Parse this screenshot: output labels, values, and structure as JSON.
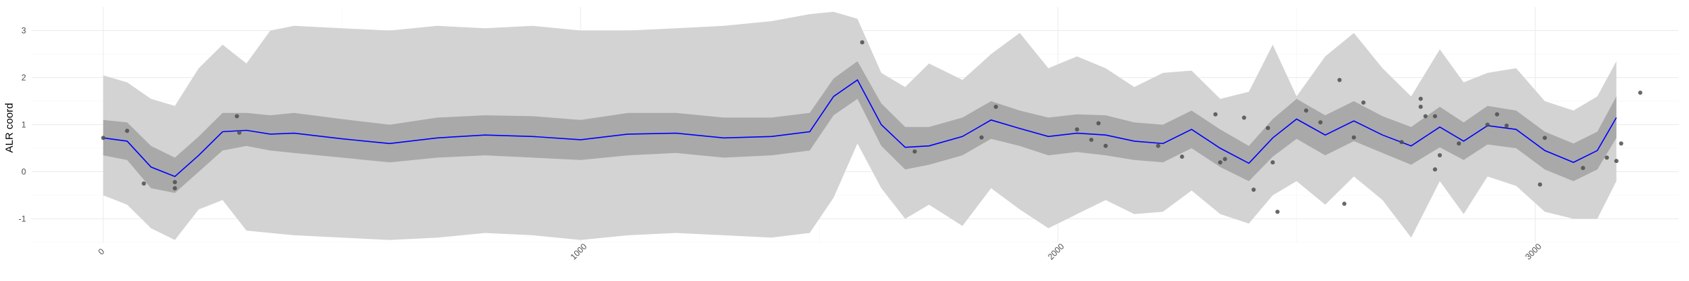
{
  "chart_data": {
    "type": "line",
    "title": "",
    "xlabel": "",
    "ylabel": "ALR coord",
    "xlim": [
      -150,
      3300
    ],
    "ylim": [
      -1.5,
      3.5
    ],
    "x_ticks": [
      0,
      1000,
      2000,
      3000
    ],
    "y_ticks": [
      -1,
      0,
      1,
      2,
      3
    ],
    "grid": true,
    "colors": {
      "mean_line": "#0000ff",
      "inner_band": "#a9a9a9",
      "outer_band": "#d3d3d3",
      "points": "#4d4d4d",
      "grid_major": "#ebebeb",
      "grid_minor": "#f5f5f5"
    },
    "series": [
      {
        "x": [
          0,
          50,
          100,
          150,
          200,
          250,
          300,
          350,
          400,
          500,
          600,
          700,
          800,
          900,
          1000,
          1100,
          1200,
          1300,
          1400,
          1480,
          1530,
          1580,
          1630,
          1680,
          1730,
          1800,
          1860,
          1920,
          1980,
          2040,
          2100,
          2160,
          2220,
          2280,
          2340,
          2400,
          2450,
          2500,
          2560,
          2620,
          2680,
          2740,
          2800,
          2850,
          2900,
          2960,
          3020,
          3080,
          3130,
          3170
        ],
        "mean": [
          0.72,
          0.65,
          0.1,
          -0.1,
          0.35,
          0.85,
          0.88,
          0.8,
          0.82,
          0.7,
          0.6,
          0.72,
          0.78,
          0.75,
          0.68,
          0.8,
          0.82,
          0.72,
          0.75,
          0.85,
          1.6,
          1.95,
          1.0,
          0.52,
          0.55,
          0.75,
          1.1,
          0.92,
          0.75,
          0.82,
          0.78,
          0.65,
          0.6,
          0.9,
          0.5,
          0.18,
          0.72,
          1.12,
          0.78,
          1.08,
          0.78,
          0.55,
          0.95,
          0.65,
          0.98,
          0.9,
          0.45,
          0.2,
          0.45,
          1.15
        ],
        "lower80": [
          0.35,
          0.25,
          -0.35,
          -0.45,
          0.0,
          0.45,
          0.55,
          0.45,
          0.4,
          0.3,
          0.2,
          0.3,
          0.35,
          0.3,
          0.25,
          0.35,
          0.4,
          0.3,
          0.35,
          0.45,
          1.2,
          1.55,
          0.55,
          0.05,
          0.15,
          0.35,
          0.7,
          0.55,
          0.35,
          0.42,
          0.35,
          0.25,
          0.2,
          0.5,
          0.1,
          -0.2,
          0.32,
          0.7,
          0.35,
          0.65,
          0.4,
          0.15,
          0.52,
          0.25,
          0.58,
          0.5,
          0.05,
          -0.2,
          0.05,
          0.72
        ],
        "upper80": [
          1.1,
          1.05,
          0.55,
          0.3,
          0.75,
          1.25,
          1.25,
          1.2,
          1.25,
          1.12,
          1.0,
          1.15,
          1.2,
          1.18,
          1.1,
          1.25,
          1.25,
          1.15,
          1.15,
          1.25,
          1.98,
          2.35,
          1.45,
          0.95,
          0.95,
          1.15,
          1.5,
          1.3,
          1.15,
          1.22,
          1.2,
          1.05,
          1.0,
          1.3,
          0.9,
          0.55,
          1.12,
          1.55,
          1.2,
          1.5,
          1.18,
          0.95,
          1.38,
          1.05,
          1.4,
          1.3,
          0.85,
          0.6,
          0.85,
          1.6
        ],
        "lower95": [
          -0.5,
          -0.7,
          -1.2,
          -1.45,
          -0.8,
          -0.6,
          -1.25,
          -1.3,
          -1.35,
          -1.4,
          -1.45,
          -1.4,
          -1.3,
          -1.35,
          -1.45,
          -1.35,
          -1.3,
          -1.35,
          -1.4,
          -1.3,
          -0.55,
          0.6,
          -0.35,
          -1.0,
          -0.7,
          -1.15,
          -0.35,
          -0.8,
          -1.2,
          -0.9,
          -0.6,
          -0.9,
          -0.85,
          -0.4,
          -0.9,
          -1.1,
          -0.5,
          -0.2,
          -0.7,
          -0.1,
          -0.6,
          -1.4,
          -0.2,
          -0.9,
          -0.1,
          -0.3,
          -0.85,
          -1.0,
          -1.0,
          -0.2
        ],
        "upper95": [
          2.05,
          1.9,
          1.55,
          1.4,
          2.2,
          2.7,
          2.3,
          3.0,
          3.1,
          3.05,
          3.0,
          3.1,
          3.05,
          3.1,
          3.0,
          3.0,
          3.05,
          3.1,
          3.2,
          3.35,
          3.4,
          3.25,
          2.1,
          1.8,
          2.3,
          1.95,
          2.5,
          2.95,
          2.2,
          2.45,
          2.2,
          1.8,
          2.1,
          2.15,
          1.55,
          1.7,
          2.7,
          1.6,
          2.45,
          2.95,
          2.2,
          1.6,
          2.6,
          1.9,
          2.1,
          2.2,
          1.5,
          1.3,
          1.6,
          2.35
        ]
      }
    ],
    "points": [
      [
        0,
        0.72
      ],
      [
        50,
        0.87
      ],
      [
        85,
        -0.25
      ],
      [
        150,
        -0.22
      ],
      [
        150,
        -0.35
      ],
      [
        280,
        1.18
      ],
      [
        285,
        0.83
      ],
      [
        1590,
        2.75
      ],
      [
        1700,
        0.43
      ],
      [
        1840,
        0.73
      ],
      [
        1870,
        1.38
      ],
      [
        2040,
        0.9
      ],
      [
        2070,
        0.68
      ],
      [
        2085,
        1.03
      ],
      [
        2100,
        0.55
      ],
      [
        2210,
        0.55
      ],
      [
        2260,
        0.32
      ],
      [
        2330,
        1.22
      ],
      [
        2350,
        0.27
      ],
      [
        2340,
        0.2
      ],
      [
        2390,
        1.15
      ],
      [
        2410,
        -0.38
      ],
      [
        2440,
        0.93
      ],
      [
        2450,
        0.2
      ],
      [
        2460,
        -0.85
      ],
      [
        2520,
        1.3
      ],
      [
        2550,
        1.05
      ],
      [
        2590,
        1.95
      ],
      [
        2600,
        -0.68
      ],
      [
        2620,
        0.73
      ],
      [
        2640,
        1.47
      ],
      [
        2720,
        0.63
      ],
      [
        2760,
        1.55
      ],
      [
        2760,
        1.38
      ],
      [
        2770,
        1.18
      ],
      [
        2790,
        0.05
      ],
      [
        2790,
        1.18
      ],
      [
        2800,
        0.35
      ],
      [
        2840,
        0.6
      ],
      [
        2900,
        1.0
      ],
      [
        2920,
        1.22
      ],
      [
        2940,
        0.98
      ],
      [
        3010,
        -0.27
      ],
      [
        3020,
        0.72
      ],
      [
        3100,
        0.08
      ],
      [
        3150,
        0.3
      ],
      [
        3170,
        0.23
      ],
      [
        3180,
        0.6
      ],
      [
        3220,
        1.68
      ]
    ]
  }
}
